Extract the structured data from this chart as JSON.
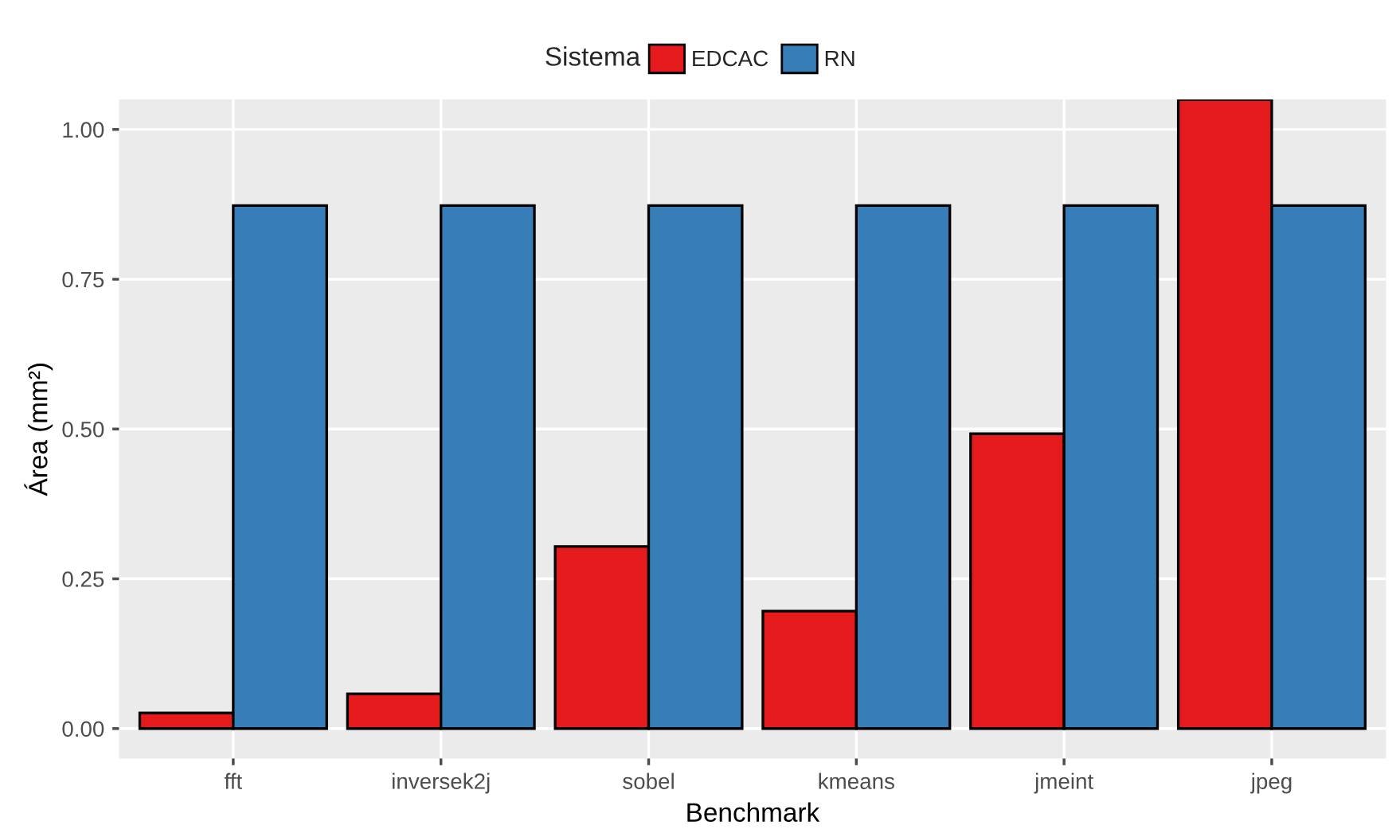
{
  "chart_data": {
    "type": "bar",
    "xlabel": "Benchmark",
    "ylabel": "Área (mm²)",
    "legend_title": "Sistema",
    "categories": [
      "fft",
      "inversek2j",
      "sobel",
      "kmeans",
      "jmeint",
      "jpeg"
    ],
    "series": [
      {
        "name": "EDCAC",
        "color": "#e41a1c",
        "values": [
          0.026,
          0.058,
          0.304,
          0.196,
          0.492,
          1.05
        ]
      },
      {
        "name": "RN",
        "color": "#377eb8",
        "values": [
          0.873,
          0.873,
          0.873,
          0.873,
          0.873,
          0.873
        ]
      }
    ],
    "ylim": [
      -0.05,
      1.05
    ],
    "yticks": [
      {
        "value": 0,
        "label": "0.00"
      },
      {
        "value": 0.25,
        "label": "0.25"
      },
      {
        "value": 0.5,
        "label": "0.50"
      },
      {
        "value": 0.75,
        "label": "0.75"
      },
      {
        "value": 1,
        "label": "1.00"
      }
    ],
    "grid": true,
    "legend": "top"
  }
}
